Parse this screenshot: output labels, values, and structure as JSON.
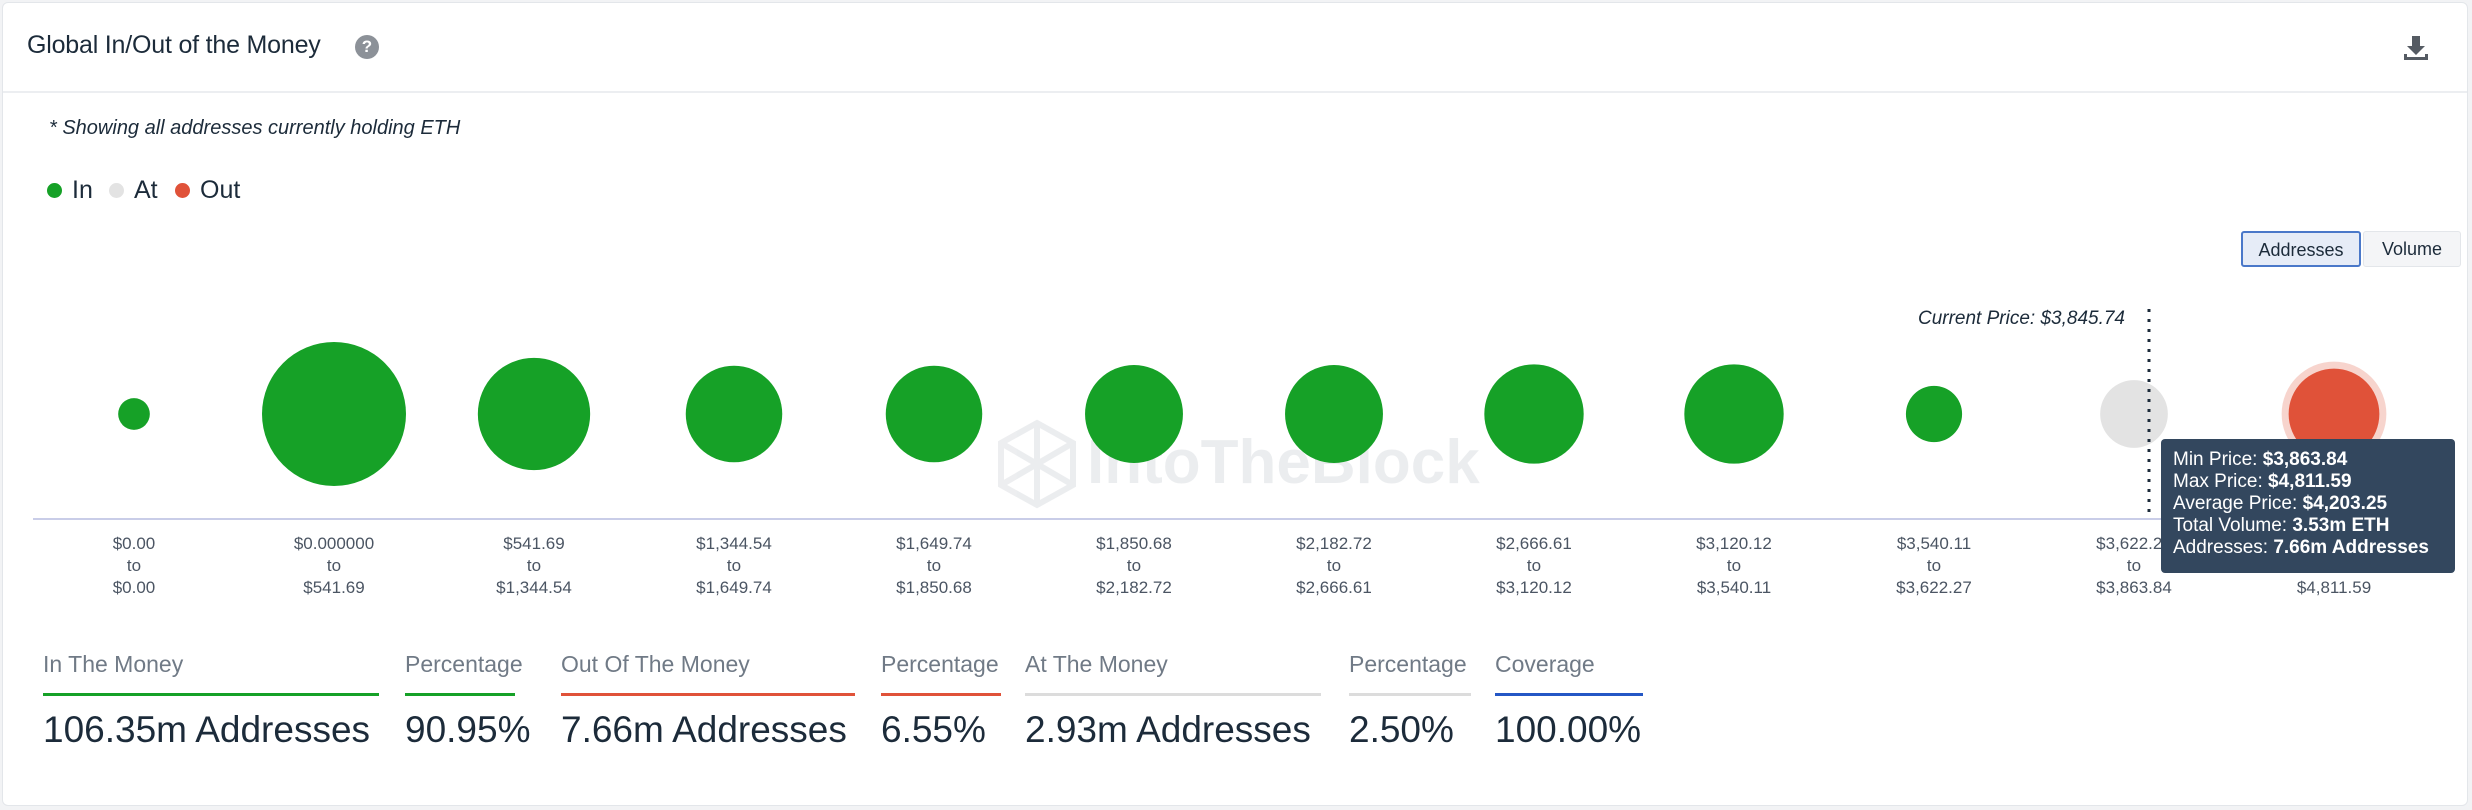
{
  "header": {
    "title": "Global In/Out of the Money",
    "help_icon": "question-circle-icon",
    "download_icon": "download-icon"
  },
  "note": "* Showing all addresses currently holding ETH",
  "legend": [
    {
      "label": "In",
      "color": "#16a127"
    },
    {
      "label": "At",
      "color": "#e3e3e3"
    },
    {
      "label": "Out",
      "color": "#e05239"
    }
  ],
  "toggles": {
    "addresses": "Addresses",
    "volume": "Volume",
    "selected": "Addresses"
  },
  "colors": {
    "in": "#16a127",
    "at": "#e3e3e3",
    "out": "#e05239",
    "axis": "#c9cde8"
  },
  "chart_data": {
    "type": "bubble",
    "metric": "Addresses",
    "current_price_label": "Current Price: $3,845.74",
    "current_price": 3845.74,
    "watermark": "IntoTheBlock",
    "buckets": [
      {
        "from": "$0.00",
        "to": "$0.00",
        "status": "in",
        "relative_size": 0.22
      },
      {
        "from": "$0.000000",
        "to": "$541.69",
        "status": "in",
        "relative_size": 1.0
      },
      {
        "from": "$541.69",
        "to": "$1,344.54",
        "status": "in",
        "relative_size": 0.78
      },
      {
        "from": "$1,344.54",
        "to": "$1,649.74",
        "status": "in",
        "relative_size": 0.67
      },
      {
        "from": "$1,649.74",
        "to": "$1,850.68",
        "status": "in",
        "relative_size": 0.67
      },
      {
        "from": "$1,850.68",
        "to": "$2,182.72",
        "status": "in",
        "relative_size": 0.68
      },
      {
        "from": "$2,182.72",
        "to": "$2,666.61",
        "status": "in",
        "relative_size": 0.68
      },
      {
        "from": "$2,666.61",
        "to": "$3,120.12",
        "status": "in",
        "relative_size": 0.69
      },
      {
        "from": "$3,120.12",
        "to": "$3,540.11",
        "status": "in",
        "relative_size": 0.69
      },
      {
        "from": "$3,540.11",
        "to": "$3,622.27",
        "status": "in",
        "relative_size": 0.39
      },
      {
        "from": "$3,622.27",
        "to": "$3,863.84",
        "status": "at",
        "relative_size": 0.47
      },
      {
        "from": "$3,863.84",
        "to": "$4,811.59",
        "status": "out",
        "relative_size": 0.63,
        "highlighted": true
      }
    ],
    "tooltip": {
      "rows": [
        {
          "label": "Min Price:",
          "value": "$3,863.84"
        },
        {
          "label": "Max Price:",
          "value": "$4,811.59"
        },
        {
          "label": "Average Price:",
          "value": "$4,203.25"
        },
        {
          "label": "Total Volume:",
          "value": "3.53m ETH"
        },
        {
          "label": "Addresses:",
          "value": "7.66m Addresses"
        }
      ]
    }
  },
  "summary": [
    {
      "label": "In The Money",
      "value": "106.35m Addresses",
      "color": "#16a127"
    },
    {
      "label": "Percentage",
      "value": "90.95%",
      "color": "#16a127"
    },
    {
      "label": "Out Of The Money",
      "value": "7.66m Addresses",
      "color": "#e05239"
    },
    {
      "label": "Percentage",
      "value": "6.55%",
      "color": "#e05239"
    },
    {
      "label": "At The Money",
      "value": "2.93m Addresses",
      "color": "#dcdcdc"
    },
    {
      "label": "Percentage",
      "value": "2.50%",
      "color": "#dcdcdc"
    },
    {
      "label": "Coverage",
      "value": "100.00%",
      "color": "#2457c5"
    }
  ]
}
